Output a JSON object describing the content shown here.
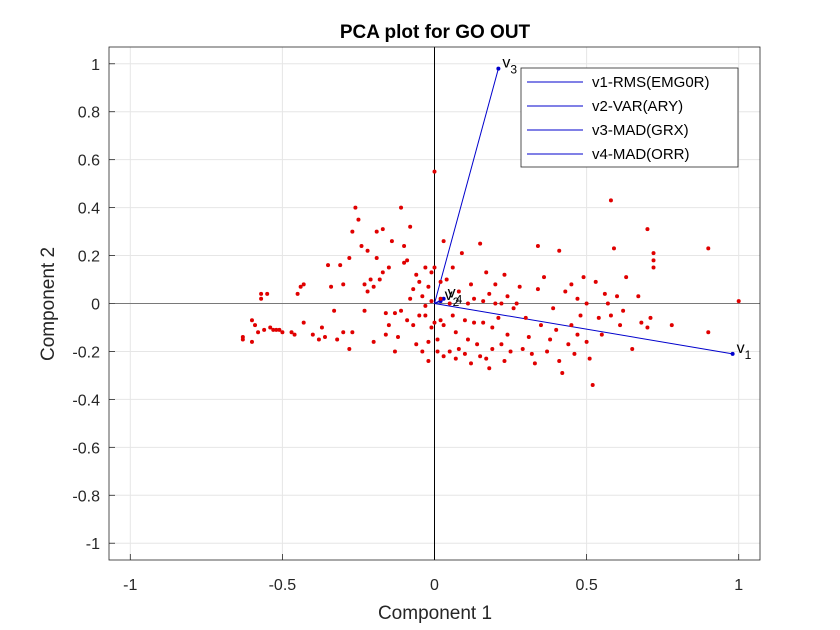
{
  "chart_data": {
    "type": "scatter",
    "title": "PCA plot for GO OUT",
    "xlabel": "Component 1",
    "ylabel": "Component 2",
    "xlim": [
      -1.07,
      1.07
    ],
    "ylim": [
      -1.07,
      1.07
    ],
    "xticks": [
      -1,
      -0.5,
      0,
      0.5,
      1
    ],
    "xtick_labels": [
      "-1",
      "-0.5",
      "0",
      "0.5",
      "1"
    ],
    "yticks": [
      -1,
      -0.8,
      -0.6,
      -0.4,
      -0.2,
      0,
      0.2,
      0.4,
      0.6,
      0.8,
      1
    ],
    "ytick_labels": [
      "-1",
      "-0.8",
      "-0.6",
      "-0.4",
      "-0.2",
      "0",
      "0.2",
      "0.4",
      "0.6",
      "0.8",
      "1"
    ],
    "grid": true,
    "legend_position": "top-right",
    "colors": {
      "points": "#e00000",
      "vectors": "#0000cc",
      "axes_lines": "#000000",
      "zero_line_h": "#555555"
    },
    "vectors": [
      {
        "name": "v1-RMS(EMG0R)",
        "label": "v",
        "sub": "1",
        "x": 0.98,
        "y": -0.21
      },
      {
        "name": "v2-VAR(ARY)",
        "label": "v",
        "sub": "2",
        "x": 0.02,
        "y": 0.01
      },
      {
        "name": "v3-MAD(GRX)",
        "label": "v",
        "sub": "3",
        "x": 0.21,
        "y": 0.98
      },
      {
        "name": "v4-MAD(ORR)",
        "label": "v",
        "sub": "4",
        "x": 0.03,
        "y": 0.02
      }
    ],
    "scores": [
      [
        -0.63,
        -0.15
      ],
      [
        -0.63,
        -0.14
      ],
      [
        -0.6,
        -0.16
      ],
      [
        -0.6,
        -0.07
      ],
      [
        -0.59,
        -0.09
      ],
      [
        -0.58,
        -0.12
      ],
      [
        -0.57,
        0.04
      ],
      [
        -0.57,
        0.02
      ],
      [
        -0.56,
        -0.11
      ],
      [
        -0.55,
        0.04
      ],
      [
        -0.54,
        -0.1
      ],
      [
        -0.53,
        -0.11
      ],
      [
        -0.52,
        -0.11
      ],
      [
        -0.51,
        -0.11
      ],
      [
        -0.5,
        -0.12
      ],
      [
        -0.47,
        -0.12
      ],
      [
        -0.46,
        -0.13
      ],
      [
        -0.45,
        0.04
      ],
      [
        -0.44,
        0.07
      ],
      [
        -0.43,
        0.08
      ],
      [
        -0.43,
        -0.08
      ],
      [
        -0.4,
        -0.13
      ],
      [
        -0.38,
        -0.15
      ],
      [
        -0.37,
        -0.1
      ],
      [
        -0.36,
        -0.14
      ],
      [
        -0.35,
        0.16
      ],
      [
        -0.34,
        0.07
      ],
      [
        -0.33,
        -0.03
      ],
      [
        -0.32,
        -0.15
      ],
      [
        -0.31,
        0.16
      ],
      [
        -0.3,
        0.08
      ],
      [
        -0.3,
        -0.12
      ],
      [
        -0.28,
        -0.19
      ],
      [
        -0.28,
        0.19
      ],
      [
        -0.27,
        -0.12
      ],
      [
        -0.27,
        0.3
      ],
      [
        -0.26,
        0.4
      ],
      [
        -0.25,
        0.35
      ],
      [
        -0.24,
        0.24
      ],
      [
        -0.23,
        0.08
      ],
      [
        -0.23,
        -0.03
      ],
      [
        -0.22,
        0.22
      ],
      [
        -0.22,
        0.05
      ],
      [
        -0.21,
        0.1
      ],
      [
        -0.2,
        -0.16
      ],
      [
        -0.2,
        0.07
      ],
      [
        -0.19,
        0.3
      ],
      [
        -0.19,
        0.19
      ],
      [
        -0.18,
        0.1
      ],
      [
        -0.17,
        0.13
      ],
      [
        -0.17,
        0.31
      ],
      [
        -0.16,
        -0.04
      ],
      [
        -0.16,
        -0.13
      ],
      [
        -0.15,
        0.15
      ],
      [
        -0.15,
        -0.09
      ],
      [
        -0.14,
        0.26
      ],
      [
        -0.13,
        -0.04
      ],
      [
        -0.13,
        -0.2
      ],
      [
        -0.12,
        -0.14
      ],
      [
        -0.11,
        0.4
      ],
      [
        -0.11,
        -0.03
      ],
      [
        -0.1,
        0.24
      ],
      [
        -0.1,
        0.17
      ],
      [
        -0.09,
        -0.07
      ],
      [
        -0.09,
        0.18
      ],
      [
        -0.08,
        0.02
      ],
      [
        -0.08,
        0.32
      ],
      [
        -0.07,
        0.06
      ],
      [
        -0.07,
        -0.09
      ],
      [
        -0.06,
        -0.17
      ],
      [
        -0.06,
        0.12
      ],
      [
        -0.05,
        -0.05
      ],
      [
        -0.05,
        0.09
      ],
      [
        -0.04,
        0.03
      ],
      [
        -0.04,
        -0.2
      ],
      [
        -0.03,
        0.15
      ],
      [
        -0.03,
        -0.05
      ],
      [
        -0.03,
        -0.01
      ],
      [
        -0.02,
        0.07
      ],
      [
        -0.02,
        -0.16
      ],
      [
        -0.02,
        -0.24
      ],
      [
        -0.01,
        0.13
      ],
      [
        -0.01,
        0.01
      ],
      [
        -0.01,
        -0.1
      ],
      [
        0.0,
        0.55
      ],
      [
        0.0,
        0.15
      ],
      [
        0.0,
        -0.08
      ],
      [
        0.01,
        -0.2
      ],
      [
        0.01,
        -0.15
      ],
      [
        0.02,
        0.09
      ],
      [
        0.02,
        -0.07
      ],
      [
        0.02,
        0.02
      ],
      [
        0.03,
        -0.22
      ],
      [
        0.03,
        0.26
      ],
      [
        0.03,
        -0.09
      ],
      [
        0.04,
        0.1
      ],
      [
        0.05,
        0.0
      ],
      [
        0.05,
        -0.2
      ],
      [
        0.06,
        0.15
      ],
      [
        0.06,
        -0.05
      ],
      [
        0.07,
        -0.12
      ],
      [
        0.07,
        -0.23
      ],
      [
        0.08,
        -0.19
      ],
      [
        0.08,
        0.05
      ],
      [
        0.09,
        0.21
      ],
      [
        0.1,
        -0.07
      ],
      [
        0.1,
        -0.21
      ],
      [
        0.11,
        0.0
      ],
      [
        0.11,
        -0.15
      ],
      [
        0.12,
        0.08
      ],
      [
        0.12,
        -0.25
      ],
      [
        0.13,
        -0.08
      ],
      [
        0.13,
        0.02
      ],
      [
        0.14,
        -0.17
      ],
      [
        0.15,
        0.25
      ],
      [
        0.15,
        -0.22
      ],
      [
        0.16,
        0.01
      ],
      [
        0.16,
        -0.08
      ],
      [
        0.17,
        -0.23
      ],
      [
        0.17,
        0.13
      ],
      [
        0.18,
        -0.27
      ],
      [
        0.18,
        0.04
      ],
      [
        0.19,
        -0.1
      ],
      [
        0.19,
        -0.19
      ],
      [
        0.2,
        0.08
      ],
      [
        0.2,
        0.0
      ],
      [
        0.21,
        -0.06
      ],
      [
        0.22,
        0.0
      ],
      [
        0.22,
        -0.17
      ],
      [
        0.23,
        0.12
      ],
      [
        0.23,
        -0.24
      ],
      [
        0.24,
        -0.13
      ],
      [
        0.24,
        0.03
      ],
      [
        0.25,
        -0.2
      ],
      [
        0.26,
        -0.02
      ],
      [
        0.27,
        0.0
      ],
      [
        0.28,
        0.07
      ],
      [
        0.29,
        -0.19
      ],
      [
        0.3,
        -0.06
      ],
      [
        0.31,
        -0.14
      ],
      [
        0.32,
        -0.21
      ],
      [
        0.33,
        -0.25
      ],
      [
        0.34,
        0.24
      ],
      [
        0.34,
        0.06
      ],
      [
        0.35,
        -0.09
      ],
      [
        0.36,
        0.11
      ],
      [
        0.37,
        -0.2
      ],
      [
        0.38,
        -0.15
      ],
      [
        0.39,
        -0.02
      ],
      [
        0.4,
        -0.11
      ],
      [
        0.41,
        0.22
      ],
      [
        0.41,
        -0.24
      ],
      [
        0.42,
        -0.29
      ],
      [
        0.43,
        0.05
      ],
      [
        0.44,
        -0.17
      ],
      [
        0.45,
        -0.09
      ],
      [
        0.45,
        0.08
      ],
      [
        0.46,
        -0.21
      ],
      [
        0.47,
        0.02
      ],
      [
        0.47,
        -0.13
      ],
      [
        0.48,
        -0.05
      ],
      [
        0.49,
        0.11
      ],
      [
        0.5,
        -0.16
      ],
      [
        0.5,
        0.0
      ],
      [
        0.51,
        -0.23
      ],
      [
        0.52,
        -0.34
      ],
      [
        0.53,
        0.09
      ],
      [
        0.54,
        -0.06
      ],
      [
        0.55,
        -0.13
      ],
      [
        0.56,
        0.04
      ],
      [
        0.57,
        0.0
      ],
      [
        0.58,
        0.43
      ],
      [
        0.58,
        -0.05
      ],
      [
        0.59,
        0.23
      ],
      [
        0.6,
        0.03
      ],
      [
        0.61,
        -0.09
      ],
      [
        0.62,
        -0.03
      ],
      [
        0.63,
        0.11
      ],
      [
        0.65,
        -0.19
      ],
      [
        0.67,
        0.03
      ],
      [
        0.68,
        -0.08
      ],
      [
        0.7,
        0.31
      ],
      [
        0.7,
        -0.1
      ],
      [
        0.71,
        -0.06
      ],
      [
        0.72,
        0.15
      ],
      [
        0.72,
        0.21
      ],
      [
        0.72,
        0.18
      ],
      [
        0.78,
        -0.09
      ],
      [
        0.9,
        -0.12
      ],
      [
        0.9,
        0.23
      ],
      [
        1.0,
        0.01
      ]
    ]
  }
}
